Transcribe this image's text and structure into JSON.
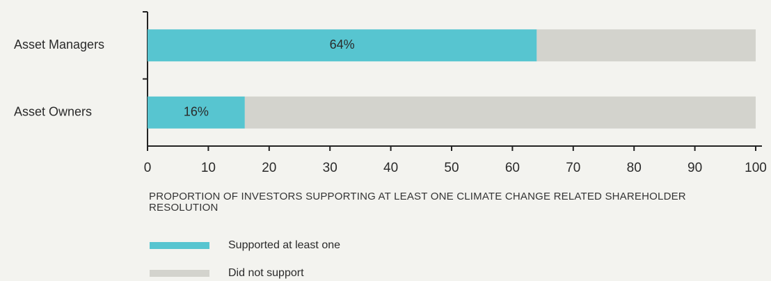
{
  "chart_data": {
    "type": "stacked-barh",
    "categories": [
      "Asset Managers",
      "Asset Owners"
    ],
    "series": [
      {
        "name": "Supported at least one",
        "color": "#57c5d0",
        "values": [
          64,
          16
        ],
        "value_labels": [
          "64%",
          "16%"
        ]
      },
      {
        "name": "Did not support",
        "color": "#d3d3cd",
        "values": [
          36,
          84
        ]
      }
    ],
    "xlim": [
      0,
      100
    ],
    "xticks": [
      0,
      10,
      20,
      30,
      40,
      50,
      60,
      70,
      80,
      90,
      100
    ],
    "xlabel": "PROPORTION OF INVESTORS SUPPORTING AT LEAST ONE CLIMATE CHANGE RELATED SHAREHOLDER RESOLUTION",
    "legend": "bottom-left"
  }
}
